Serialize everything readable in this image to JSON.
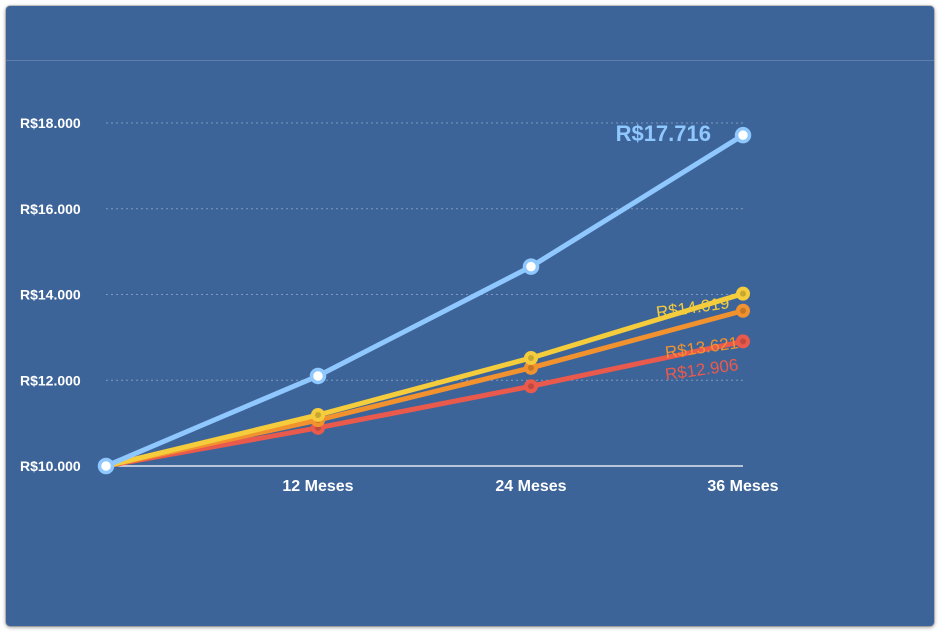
{
  "chart_data": {
    "type": "line",
    "title": "",
    "xlabel": "",
    "ylabel": "",
    "x": [
      "",
      "12 Meses",
      "24 Meses",
      "36 Meses"
    ],
    "ylim": [
      10000,
      18000
    ],
    "yticks": [
      10000,
      12000,
      14000,
      16000,
      18000
    ],
    "ytick_labels": [
      "R$10.000",
      "R$12.000",
      "R$14.000",
      "R$16.000",
      "R$18.000"
    ],
    "grid": true,
    "series": [
      {
        "color": "#ea5a4c",
        "values": [
          10000,
          10890,
          11860,
          12906
        ],
        "end_label": "R$12.906"
      },
      {
        "color": "#f1922f",
        "values": [
          10000,
          11070,
          12290,
          13621
        ],
        "end_label": "R$13.621"
      },
      {
        "color": "#f4cc3c",
        "values": [
          10000,
          11190,
          12520,
          14019
        ],
        "end_label": "R$14.019"
      },
      {
        "color": "#8fc7ff",
        "values": [
          10000,
          12100,
          14650,
          17716
        ],
        "end_label": "R$17.716"
      }
    ]
  }
}
